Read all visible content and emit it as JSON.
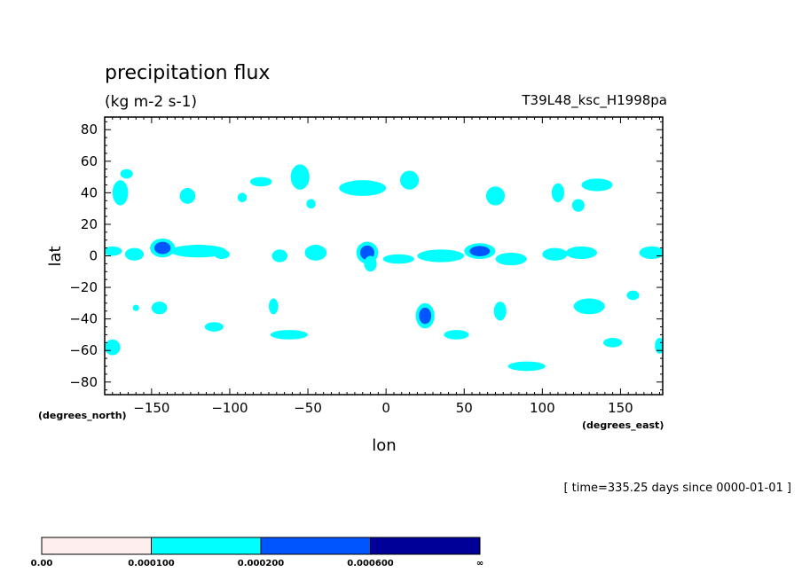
{
  "chart_data": {
    "type": "contour-map",
    "title": "precipitation flux",
    "units": "(kg m-2 s-1)",
    "run_id": "T39L48_ksc_H1998pa",
    "xlabel": "lon",
    "ylabel": "lat",
    "x_units_label": "(degrees_east)",
    "y_units_label": "(degrees_north)",
    "time_label": "[ time=335.25 days since 0000-01-01 ]",
    "xlim": [
      -180,
      177
    ],
    "ylim": [
      -88,
      88
    ],
    "x_ticks": [
      -150,
      -100,
      -50,
      0,
      50,
      100,
      150
    ],
    "y_ticks": [
      80,
      60,
      40,
      20,
      0,
      -20,
      -40,
      -60,
      -80
    ],
    "x_tick_labels": [
      "−150",
      "−100",
      "−50",
      "0",
      "50",
      "100",
      "150"
    ],
    "y_tick_labels": [
      "80",
      "60",
      "40",
      "20",
      "0",
      "−20",
      "−40",
      "−60",
      "−80"
    ],
    "levels": [
      0.0,
      0.0001,
      0.0002,
      0.0006
    ],
    "level_labels": [
      "0.00",
      "0.000100",
      "0.000200",
      "0.000600",
      "∞"
    ],
    "level_colors": [
      "#ffeeee",
      "#00ffff",
      "#0055ff",
      "#000099"
    ],
    "regions": [
      {
        "lon": -175,
        "lat": 3,
        "rlon": 6,
        "rlat": 3,
        "level": 1
      },
      {
        "lon": -170,
        "lat": 40,
        "rlon": 5,
        "rlat": 8,
        "level": 1
      },
      {
        "lon": -166,
        "lat": 52,
        "rlon": 4,
        "rlat": 3,
        "level": 1
      },
      {
        "lon": -161,
        "lat": 1,
        "rlon": 6,
        "rlat": 4,
        "level": 1
      },
      {
        "lon": -143,
        "lat": 5,
        "rlon": 8,
        "rlat": 6,
        "level": 2
      },
      {
        "lon": -120,
        "lat": 3,
        "rlon": 18,
        "rlat": 4,
        "level": 1
      },
      {
        "lon": -105,
        "lat": 1,
        "rlon": 5,
        "rlat": 3,
        "level": 1
      },
      {
        "lon": -127,
        "lat": 38,
        "rlon": 5,
        "rlat": 5,
        "level": 1
      },
      {
        "lon": -145,
        "lat": -33,
        "rlon": 5,
        "rlat": 4,
        "level": 1
      },
      {
        "lon": -160,
        "lat": -33,
        "rlon": 2,
        "rlat": 2,
        "level": 1
      },
      {
        "lon": -110,
        "lat": -45,
        "rlon": 6,
        "rlat": 3,
        "level": 1
      },
      {
        "lon": -175,
        "lat": -58,
        "rlon": 5,
        "rlat": 5,
        "level": 1
      },
      {
        "lon": -80,
        "lat": 47,
        "rlon": 7,
        "rlat": 3,
        "level": 1
      },
      {
        "lon": -92,
        "lat": 37,
        "rlon": 3,
        "rlat": 3,
        "level": 1
      },
      {
        "lon": -55,
        "lat": 50,
        "rlon": 6,
        "rlat": 8,
        "level": 1
      },
      {
        "lon": -48,
        "lat": 33,
        "rlon": 3,
        "rlat": 3,
        "level": 1
      },
      {
        "lon": -68,
        "lat": 0,
        "rlon": 5,
        "rlat": 4,
        "level": 1
      },
      {
        "lon": -45,
        "lat": 2,
        "rlon": 7,
        "rlat": 5,
        "level": 1
      },
      {
        "lon": -72,
        "lat": -32,
        "rlon": 3,
        "rlat": 5,
        "level": 1
      },
      {
        "lon": -62,
        "lat": -50,
        "rlon": 12,
        "rlat": 3,
        "level": 1
      },
      {
        "lon": -15,
        "lat": 43,
        "rlon": 15,
        "rlat": 5,
        "level": 1
      },
      {
        "lon": 15,
        "lat": 48,
        "rlon": 6,
        "rlat": 6,
        "level": 1
      },
      {
        "lon": -12,
        "lat": 2,
        "rlon": 7,
        "rlat": 7,
        "level": 2
      },
      {
        "lon": -10,
        "lat": -5,
        "rlon": 4,
        "rlat": 5,
        "level": 1
      },
      {
        "lon": 8,
        "lat": -2,
        "rlon": 10,
        "rlat": 3,
        "level": 1
      },
      {
        "lon": 25,
        "lat": -38,
        "rlon": 6,
        "rlat": 8,
        "level": 2
      },
      {
        "lon": 45,
        "lat": -50,
        "rlon": 8,
        "rlat": 3,
        "level": 1
      },
      {
        "lon": 35,
        "lat": 0,
        "rlon": 15,
        "rlat": 4,
        "level": 1
      },
      {
        "lon": 60,
        "lat": 3,
        "rlon": 10,
        "rlat": 5,
        "level": 2
      },
      {
        "lon": 80,
        "lat": -2,
        "rlon": 10,
        "rlat": 4,
        "level": 1
      },
      {
        "lon": 70,
        "lat": 38,
        "rlon": 6,
        "rlat": 6,
        "level": 1
      },
      {
        "lon": 73,
        "lat": -35,
        "rlon": 4,
        "rlat": 6,
        "level": 1
      },
      {
        "lon": 90,
        "lat": -70,
        "rlon": 12,
        "rlat": 3,
        "level": 1
      },
      {
        "lon": 108,
        "lat": 1,
        "rlon": 8,
        "rlat": 4,
        "level": 1
      },
      {
        "lon": 125,
        "lat": 2,
        "rlon": 10,
        "rlat": 4,
        "level": 1
      },
      {
        "lon": 110,
        "lat": 40,
        "rlon": 4,
        "rlat": 6,
        "level": 1
      },
      {
        "lon": 135,
        "lat": 45,
        "rlon": 10,
        "rlat": 4,
        "level": 1
      },
      {
        "lon": 123,
        "lat": 32,
        "rlon": 4,
        "rlat": 4,
        "level": 1
      },
      {
        "lon": 130,
        "lat": -32,
        "rlon": 10,
        "rlat": 5,
        "level": 1
      },
      {
        "lon": 145,
        "lat": -55,
        "rlon": 6,
        "rlat": 3,
        "level": 1
      },
      {
        "lon": 170,
        "lat": 2,
        "rlon": 8,
        "rlat": 4,
        "level": 1
      },
      {
        "lon": 158,
        "lat": -25,
        "rlon": 4,
        "rlat": 3,
        "level": 1
      },
      {
        "lon": 175,
        "lat": -57,
        "rlon": 3,
        "rlat": 5,
        "level": 1
      }
    ]
  }
}
